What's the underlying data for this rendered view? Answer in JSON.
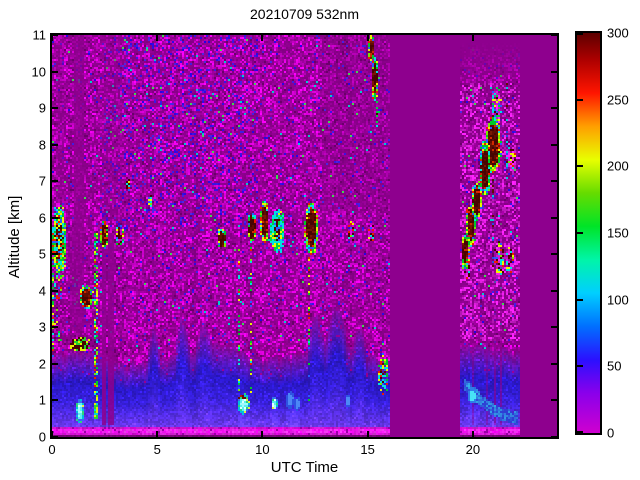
{
  "chart_data": {
    "type": "heatmap",
    "title": "20210709 532nm",
    "xlabel": "UTC Time",
    "ylabel": "Altitude [km]",
    "xlim": [
      0,
      24
    ],
    "ylim": [
      0,
      11
    ],
    "x_ticks": [
      0,
      5,
      10,
      15,
      20
    ],
    "y_ticks": [
      0,
      1,
      2,
      3,
      4,
      5,
      6,
      7,
      8,
      9,
      10,
      11
    ],
    "colorbar": {
      "range": [
        0,
        300
      ],
      "ticks": [
        0,
        50,
        100,
        150,
        200,
        250,
        300
      ],
      "colormap": [
        {
          "v": 0,
          "c": "#CF00CF"
        },
        {
          "v": 30,
          "c": "#8A00EB"
        },
        {
          "v": 55,
          "c": "#2B10FF"
        },
        {
          "v": 80,
          "c": "#0070FF"
        },
        {
          "v": 105,
          "c": "#00CFFF"
        },
        {
          "v": 130,
          "c": "#00F5A8"
        },
        {
          "v": 155,
          "c": "#00E427"
        },
        {
          "v": 180,
          "c": "#66DC00"
        },
        {
          "v": 205,
          "c": "#E8FF00"
        },
        {
          "v": 230,
          "c": "#FF9E00"
        },
        {
          "v": 255,
          "c": "#FF1500"
        },
        {
          "v": 280,
          "c": "#AD0000"
        },
        {
          "v": 300,
          "c": "#5E0000"
        }
      ]
    },
    "time_segments": [
      [
        0,
        16.05
      ],
      [
        19.35,
        22.25
      ]
    ],
    "data_gaps": [
      [
        16.05,
        19.35
      ],
      [
        22.25,
        24
      ]
    ],
    "background": {
      "gap_color": "#8E008E",
      "noise_base_color": "#8B008B",
      "surface_band": {
        "alt_range": [
          0.04,
          0.3
        ],
        "color": "#FF48FF"
      },
      "boundary_layer_height": [
        [
          0,
          2.2
        ],
        [
          1.5,
          2.35
        ],
        [
          2.5,
          2.2
        ],
        [
          3.5,
          1.95
        ],
        [
          4.5,
          2.05
        ],
        [
          6,
          2.25
        ],
        [
          8,
          2.55
        ],
        [
          9,
          2.35
        ],
        [
          10,
          2.1
        ],
        [
          11,
          2.15
        ],
        [
          12,
          2.3
        ],
        [
          13,
          2.6
        ],
        [
          14,
          2.45
        ],
        [
          15,
          2.25
        ],
        [
          16.05,
          2.05
        ],
        [
          19.35,
          2.55
        ],
        [
          21,
          2.45
        ],
        [
          22.25,
          2.25
        ],
        [
          24,
          2.25
        ]
      ],
      "wisps": [
        {
          "t": [
            4.55,
            5.15
          ],
          "top": 3.0
        },
        {
          "t": [
            5.85,
            6.55
          ],
          "top": 3.25
        },
        {
          "t": [
            6.85,
            7.65
          ],
          "top": 3.05
        },
        {
          "t": [
            12.15,
            12.95
          ],
          "top": 3.35
        },
        {
          "t": [
            13.05,
            14.05
          ],
          "top": 3.6
        },
        {
          "t": [
            14.3,
            14.95
          ],
          "top": 3.05
        }
      ]
    },
    "features": {
      "clouds": [
        {
          "t": [
            0.0,
            0.68
          ],
          "a": [
            4.4,
            6.35
          ],
          "style": "vivid"
        },
        {
          "t": [
            0.9,
            1.78
          ],
          "a": [
            2.35,
            2.72
          ],
          "style": "bar"
        },
        {
          "t": [
            1.3,
            1.95
          ],
          "a": [
            3.5,
            4.15
          ],
          "style": "dense"
        },
        {
          "t": [
            2.3,
            2.68
          ],
          "a": [
            5.15,
            5.92
          ],
          "style": "dense"
        },
        {
          "t": [
            3.05,
            3.42
          ],
          "a": [
            5.2,
            5.85
          ],
          "style": "dense",
          "frac": 0.7
        },
        {
          "t": [
            3.55,
            3.72
          ],
          "a": [
            6.75,
            7.05
          ],
          "style": "small"
        },
        {
          "t": [
            4.58,
            4.78
          ],
          "a": [
            6.3,
            6.6
          ],
          "style": "small"
        },
        {
          "t": [
            7.85,
            8.3
          ],
          "a": [
            5.15,
            5.7
          ],
          "style": "dense"
        },
        {
          "t": [
            9.3,
            9.7
          ],
          "a": [
            5.3,
            6.15
          ],
          "style": "dense"
        },
        {
          "t": [
            9.9,
            10.3
          ],
          "a": [
            5.3,
            6.45
          ],
          "style": "dense"
        },
        {
          "t": [
            10.35,
            11.05
          ],
          "a": [
            5.05,
            6.25
          ],
          "style": "cyan"
        },
        {
          "t": [
            12.0,
            12.65
          ],
          "a": [
            5.0,
            6.4
          ],
          "style": "dense"
        },
        {
          "t": [
            14.05,
            14.4
          ],
          "a": [
            5.35,
            5.95
          ],
          "style": "small",
          "frac": 0.6
        },
        {
          "t": [
            15.0,
            15.35
          ],
          "a": [
            5.35,
            5.9
          ],
          "style": "small",
          "frac": 0.6
        },
        {
          "t": [
            15.05,
            15.32
          ],
          "a": [
            10.25,
            11.0
          ],
          "style": "dense"
        },
        {
          "t": [
            15.2,
            15.5
          ],
          "a": [
            9.2,
            10.4
          ],
          "style": "dense"
        },
        {
          "t": [
            15.35,
            15.55
          ],
          "a": [
            8.5,
            9.3
          ],
          "style": "cyan",
          "frac": 0.5
        },
        {
          "t": [
            15.5,
            15.98
          ],
          "a": [
            1.15,
            2.3
          ],
          "style": "vivid",
          "frac": 0.7
        },
        {
          "t": [
            19.45,
            19.82
          ],
          "a": [
            4.6,
            5.6
          ],
          "style": "dense"
        },
        {
          "t": [
            19.7,
            20.12
          ],
          "a": [
            5.2,
            6.4
          ],
          "style": "dense"
        },
        {
          "t": [
            19.95,
            20.4
          ],
          "a": [
            5.9,
            7.0
          ],
          "style": "dense"
        },
        {
          "t": [
            20.3,
            20.85
          ],
          "a": [
            6.6,
            8.1
          ],
          "style": "dense"
        },
        {
          "t": [
            20.6,
            21.35
          ],
          "a": [
            7.2,
            8.75
          ],
          "style": "dense"
        },
        {
          "t": [
            20.9,
            21.35
          ],
          "a": [
            8.6,
            9.55
          ],
          "style": "cyan",
          "frac": 0.55
        },
        {
          "t": [
            19.5,
            19.95
          ],
          "a": [
            4.35,
            4.95
          ],
          "style": "small",
          "frac": 0.5
        },
        {
          "t": [
            21.05,
            21.5
          ],
          "a": [
            4.4,
            5.35
          ],
          "style": "small",
          "frac": 0.55
        },
        {
          "t": [
            21.55,
            21.95
          ],
          "a": [
            4.5,
            5.2
          ],
          "style": "small",
          "frac": 0.5
        },
        {
          "t": [
            21.7,
            22.05
          ],
          "a": [
            7.3,
            7.9
          ],
          "style": "small",
          "frac": 0.5
        }
      ],
      "boundary_layer_blobs": [
        {
          "t": [
            1.12,
            1.52
          ],
          "a": [
            0.35,
            1.05
          ],
          "style": "bright"
        },
        {
          "t": [
            1.95,
            2.2
          ],
          "a": [
            0.45,
            0.95
          ],
          "style": "green"
        },
        {
          "t": [
            8.82,
            9.38
          ],
          "a": [
            0.62,
            1.18
          ],
          "style": "bright",
          "red_top": true
        },
        {
          "t": [
            10.42,
            10.72
          ],
          "a": [
            0.72,
            1.12
          ],
          "style": "bright"
        },
        {
          "t": [
            11.12,
            11.5
          ],
          "a": [
            0.78,
            1.25
          ],
          "style": "blue"
        },
        {
          "t": [
            11.52,
            11.8
          ],
          "a": [
            0.72,
            1.08
          ],
          "style": "blue"
        },
        {
          "t": [
            13.95,
            14.2
          ],
          "a": [
            0.8,
            1.15
          ],
          "style": "blue"
        },
        {
          "t": [
            19.78,
            20.18
          ],
          "a": [
            0.9,
            1.35
          ],
          "style": "cyan"
        }
      ],
      "virga_streaks": [
        {
          "t": [
            0.02,
            0.14
          ],
          "a": [
            2.2,
            4.5
          ],
          "density": 0.55
        },
        {
          "t": [
            0.05,
            0.5
          ],
          "a": [
            2.6,
            4.4
          ],
          "density": 0.15
        },
        {
          "t": [
            1.95,
            2.22
          ],
          "a": [
            0.9,
            5.6
          ],
          "density": 0.55
        },
        {
          "t": [
            8.88,
            8.98
          ],
          "a": [
            1.2,
            5.2
          ],
          "density": 0.3
        },
        {
          "t": [
            9.42,
            9.52
          ],
          "a": [
            1.2,
            5.2
          ],
          "density": 0.3
        },
        {
          "t": [
            12.2,
            12.3
          ],
          "a": [
            1.0,
            4.9
          ],
          "density": 0.3
        },
        {
          "t": [
            20.95,
            21.05
          ],
          "a": [
            4.6,
            9.5
          ],
          "density": 0.3,
          "cool": true
        },
        {
          "t": [
            21.55,
            21.65
          ],
          "a": [
            6.8,
            9.7
          ],
          "density": 0.3,
          "cool": true
        }
      ],
      "attenuation_streaks": [
        {
          "t": [
            0.15,
            0.6
          ],
          "a": [
            6.4,
            11
          ],
          "alpha": 0.4
        },
        {
          "t": [
            0.85,
            1.05
          ],
          "a": [
            2.9,
            5.6
          ],
          "alpha": 0.55
        },
        {
          "t": [
            1.05,
            1.55
          ],
          "a": [
            2.9,
            11
          ],
          "alpha": 0.75
        },
        {
          "t": [
            2.35,
            2.56
          ],
          "a": [
            0.35,
            5.6
          ],
          "alpha": 0.85
        },
        {
          "t": [
            2.7,
            2.9
          ],
          "a": [
            0.35,
            5.6
          ],
          "alpha": 0.85
        },
        {
          "t": [
            2.4,
            3.35
          ],
          "a": [
            5.95,
            11
          ],
          "alpha": 0.3
        },
        {
          "t": [
            19.98,
            20.06
          ],
          "a": [
            0.35,
            4.5
          ],
          "alpha": 0.45
        },
        {
          "t": [
            20.62,
            20.7
          ],
          "a": [
            0.35,
            6.5
          ],
          "alpha": 0.45
        },
        {
          "t": [
            21.05,
            21.14
          ],
          "a": [
            0.35,
            9.6
          ],
          "alpha": 0.6
        },
        {
          "t": [
            21.28,
            21.37
          ],
          "a": [
            0.35,
            9.6
          ],
          "alpha": 0.6
        }
      ],
      "cyan_arc": {
        "t_start": 19.55,
        "t_end": 22.1,
        "a_start": 1.5,
        "a_end": 0.52,
        "width": 0.14
      }
    }
  }
}
